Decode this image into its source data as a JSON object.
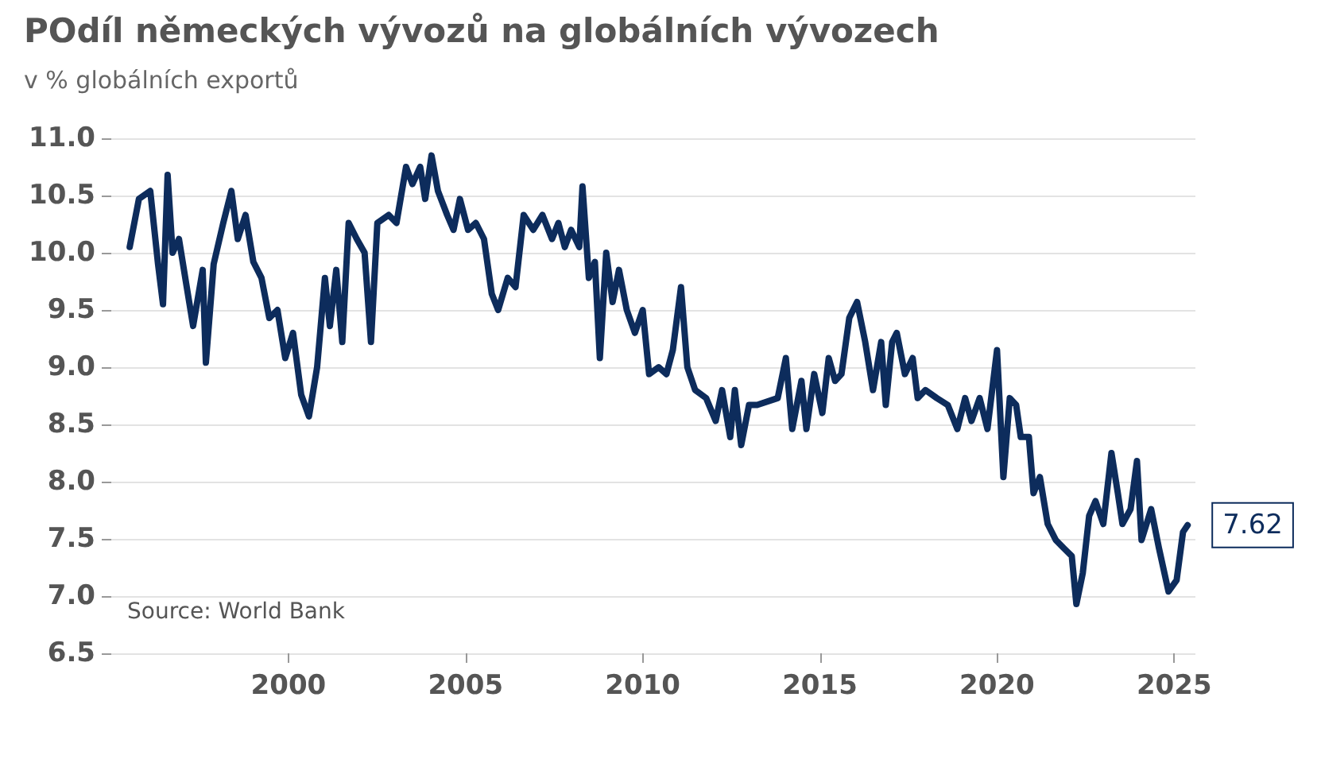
{
  "chart_data": {
    "type": "line",
    "title": "POdíl německých vývozů na globálních vývozech",
    "subtitle": "v % globálních exportů",
    "annotations": [
      "Source: World Bank",
      {
        "text": "7.62",
        "x": 2025.38,
        "y": 7.62
      }
    ],
    "x": [
      1995.52,
      1995.78,
      1996.1,
      1996.32,
      1996.46,
      1996.59,
      1996.73,
      1996.91,
      1997.13,
      1997.31,
      1997.58,
      1997.67,
      1997.89,
      1998.16,
      1998.39,
      1998.57,
      1998.79,
      1999.01,
      1999.24,
      1999.46,
      1999.69,
      1999.91,
      2000.13,
      2000.36,
      2000.58,
      2000.81,
      2001.03,
      2001.17,
      2001.35,
      2001.52,
      2001.7,
      2001.93,
      2002.15,
      2002.33,
      2002.51,
      2002.83,
      2003.05,
      2003.32,
      2003.5,
      2003.72,
      2003.86,
      2004.04,
      2004.22,
      2004.48,
      2004.66,
      2004.84,
      2005.07,
      2005.29,
      2005.52,
      2005.74,
      2005.92,
      2006.19,
      2006.41,
      2006.64,
      2006.91,
      2007.17,
      2007.44,
      2007.62,
      2007.8,
      2007.98,
      2008.21,
      2008.3,
      2008.48,
      2008.65,
      2008.79,
      2008.97,
      2009.15,
      2009.33,
      2009.55,
      2009.78,
      2010.0,
      2010.18,
      2010.45,
      2010.67,
      2010.85,
      2011.08,
      2011.26,
      2011.48,
      2011.79,
      2012.06,
      2012.24,
      2012.47,
      2012.6,
      2012.78,
      2013.0,
      2013.23,
      2013.81,
      2014.04,
      2014.22,
      2014.48,
      2014.62,
      2014.84,
      2015.07,
      2015.25,
      2015.43,
      2015.61,
      2015.83,
      2016.05,
      2016.28,
      2016.5,
      2016.73,
      2016.86,
      2017.04,
      2017.17,
      2017.4,
      2017.62,
      2017.76,
      2017.98,
      2018.3,
      2018.61,
      2018.88,
      2019.1,
      2019.28,
      2019.51,
      2019.73,
      2020.0,
      2020.18,
      2020.36,
      2020.54,
      2020.67,
      2020.9,
      2021.03,
      2021.21,
      2021.43,
      2021.66,
      2021.88,
      2022.11,
      2022.24,
      2022.42,
      2022.6,
      2022.78,
      2023.0,
      2023.23,
      2023.41,
      2023.54,
      2023.77,
      2023.95,
      2024.08,
      2024.35,
      2024.57,
      2024.84,
      2025.07,
      2025.25,
      2025.38
    ],
    "series": [
      {
        "color": "#0d2c5c",
        "values": [
          10.05,
          10.47,
          10.54,
          9.9,
          9.55,
          10.68,
          10.0,
          10.12,
          9.7,
          9.36,
          9.85,
          9.04,
          9.9,
          10.26,
          10.54,
          10.12,
          10.33,
          9.92,
          9.78,
          9.43,
          9.5,
          9.08,
          9.3,
          8.76,
          8.57,
          9.0,
          9.78,
          9.36,
          9.85,
          9.22,
          10.26,
          10.12,
          10.0,
          9.22,
          10.26,
          10.33,
          10.26,
          10.75,
          10.6,
          10.75,
          10.47,
          10.85,
          10.54,
          10.33,
          10.2,
          10.47,
          10.2,
          10.26,
          10.12,
          9.64,
          9.5,
          9.78,
          9.7,
          10.33,
          10.2,
          10.33,
          10.12,
          10.26,
          10.05,
          10.2,
          10.05,
          10.58,
          9.78,
          9.92,
          9.08,
          10.0,
          9.57,
          9.85,
          9.5,
          9.3,
          9.5,
          8.94,
          9.0,
          8.94,
          9.15,
          9.7,
          9.0,
          8.8,
          8.73,
          8.53,
          8.8,
          8.39,
          8.8,
          8.32,
          8.67,
          8.67,
          8.73,
          9.08,
          8.46,
          8.88,
          8.46,
          8.94,
          8.6,
          9.08,
          8.88,
          8.94,
          9.43,
          9.57,
          9.22,
          8.8,
          9.22,
          8.67,
          9.22,
          9.3,
          8.94,
          9.08,
          8.73,
          8.8,
          8.73,
          8.67,
          8.46,
          8.73,
          8.53,
          8.73,
          8.46,
          9.15,
          8.04,
          8.73,
          8.67,
          8.39,
          8.39,
          7.9,
          8.04,
          7.63,
          7.49,
          7.42,
          7.35,
          6.93,
          7.2,
          7.7,
          7.83,
          7.63,
          8.25,
          7.9,
          7.63,
          7.76,
          8.18,
          7.49,
          7.76,
          7.42,
          7.04,
          7.14,
          7.56,
          7.62
        ]
      }
    ],
    "xlim": [
      1995,
      2025.6
    ],
    "xticks": [
      2000,
      2005,
      2010,
      2015,
      2020,
      2025
    ],
    "ylim": [
      6.5,
      11
    ],
    "yticks": [
      {
        "value": 6.5,
        "label": "6.5"
      },
      {
        "value": 7,
        "label": "7.0"
      },
      {
        "value": 7.5,
        "label": "7.5"
      },
      {
        "value": 8,
        "label": "8.0"
      },
      {
        "value": 8.5,
        "label": "8.5"
      },
      {
        "value": 9,
        "label": "9.0"
      },
      {
        "value": 9.5,
        "label": "9.5"
      },
      {
        "value": 10,
        "label": "10.0"
      },
      {
        "value": 10.5,
        "label": "10.5"
      },
      {
        "value": 11,
        "label": "11.0"
      }
    ],
    "grid": "y",
    "marker": "none",
    "line_style": "solid"
  }
}
